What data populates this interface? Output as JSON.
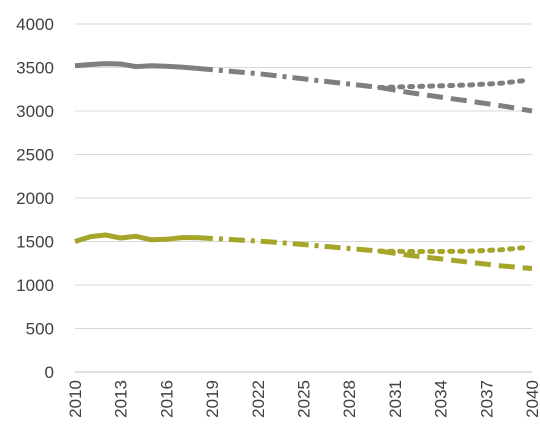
{
  "chart_data": {
    "type": "line",
    "title": "",
    "xlabel": "",
    "ylabel": "",
    "xlim": [
      2010,
      2040
    ],
    "ylim": [
      0,
      4000
    ],
    "y_ticks": [
      0,
      500,
      1000,
      1500,
      2000,
      2500,
      3000,
      3500,
      4000
    ],
    "x_ticks": [
      2010,
      2013,
      2016,
      2019,
      2022,
      2025,
      2028,
      2031,
      2034,
      2037,
      2040
    ],
    "grid": "horizontal",
    "legend": "none",
    "series": [
      {
        "color": "#7f7f7f",
        "style": "solid",
        "x": [
          2010,
          2011,
          2012,
          2013,
          2014,
          2015,
          2016,
          2017,
          2018
        ],
        "values": [
          3520,
          3535,
          3545,
          3540,
          3510,
          3520,
          3515,
          3505,
          3490
        ]
      },
      {
        "color": "#7f7f7f",
        "style": "dashdot",
        "x": [
          2018,
          2020,
          2022,
          2024,
          2026,
          2028,
          2030
        ],
        "values": [
          3490,
          3460,
          3430,
          3390,
          3350,
          3310,
          3270
        ]
      },
      {
        "color": "#7f7f7f",
        "style": "dashed",
        "x": [
          2030,
          2032,
          2034,
          2036,
          2038,
          2040
        ],
        "values": [
          3270,
          3210,
          3160,
          3110,
          3060,
          3000
        ]
      },
      {
        "color": "#7f7f7f",
        "style": "dotted",
        "x": [
          2030,
          2032,
          2034,
          2036,
          2038,
          2039.5
        ],
        "values": [
          3270,
          3280,
          3290,
          3300,
          3320,
          3350
        ]
      },
      {
        "color": "#a5a52a",
        "style": "solid",
        "x": [
          2010,
          2011,
          2012,
          2013,
          2014,
          2015,
          2016,
          2017,
          2018
        ],
        "values": [
          1500,
          1555,
          1575,
          1540,
          1560,
          1520,
          1525,
          1545,
          1545
        ]
      },
      {
        "color": "#a5a52a",
        "style": "dashdot",
        "x": [
          2018,
          2020,
          2022,
          2024,
          2026,
          2028,
          2030
        ],
        "values": [
          1545,
          1525,
          1505,
          1480,
          1450,
          1420,
          1390
        ]
      },
      {
        "color": "#a5a52a",
        "style": "dashed",
        "x": [
          2030,
          2032,
          2034,
          2036,
          2038,
          2040
        ],
        "values": [
          1390,
          1340,
          1300,
          1260,
          1220,
          1190
        ]
      },
      {
        "color": "#a5a52a",
        "style": "dotted",
        "x": [
          2030,
          2032,
          2034,
          2036,
          2038,
          2039.5
        ],
        "values": [
          1390,
          1385,
          1385,
          1390,
          1405,
          1430
        ]
      }
    ]
  }
}
